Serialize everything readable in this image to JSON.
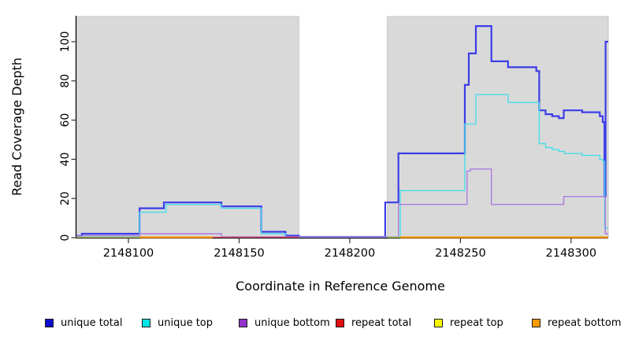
{
  "figure": {
    "xlabel": "Coordinate in Reference Genome",
    "ylabel": "Read Coverage Depth"
  },
  "legend": {
    "items": [
      {
        "label": "unique total",
        "color": "#0d0dcf"
      },
      {
        "label": "unique top",
        "color": "#00e6e6"
      },
      {
        "label": "unique bottom",
        "color": "#9232c8"
      },
      {
        "label": "repeat total",
        "color": "#e01010"
      },
      {
        "label": "repeat top",
        "color": "#f8f800"
      },
      {
        "label": "repeat bottom",
        "color": "#ff9a00"
      }
    ]
  },
  "chart_data": {
    "type": "line",
    "style": "step-after",
    "title": "",
    "xlabel": "Coordinate in Reference Genome",
    "ylabel": "Read Coverage Depth",
    "xlim": [
      2148076.5,
      2148316.8
    ],
    "ylim": [
      0,
      113
    ],
    "x_ticks": [
      2148100,
      2148150,
      2148200,
      2148250,
      2148300
    ],
    "x_tick_labels": [
      "2148100",
      "2148150",
      "2148200",
      "2148250",
      "2148300"
    ],
    "y_ticks": [
      0,
      20,
      40,
      60,
      80,
      100
    ],
    "y_tick_labels": [
      "0",
      "20",
      "40",
      "60",
      "80",
      "100"
    ],
    "grid": false,
    "legend_position": "bottom",
    "plot_background_color": "#d9d9d9",
    "masked_region": [
      2148177,
      2148217
    ],
    "series": [
      {
        "name": "unique total",
        "color": "#3c3ce8",
        "width": 2.2,
        "points": [
          [
            2148076.5,
            1
          ],
          [
            2148079,
            2
          ],
          [
            2148105,
            15
          ],
          [
            2148116,
            18
          ],
          [
            2148142,
            16
          ],
          [
            2148160,
            3
          ],
          [
            2148171,
            1
          ],
          [
            2148177,
            0.4
          ],
          [
            2148216,
            18
          ],
          [
            2148222,
            43
          ],
          [
            2148252,
            78
          ],
          [
            2148253.8,
            94
          ],
          [
            2148257,
            108
          ],
          [
            2148264,
            90
          ],
          [
            2148271.5,
            87
          ],
          [
            2148284.3,
            85
          ],
          [
            2148285.6,
            65
          ],
          [
            2148288.5,
            63
          ],
          [
            2148291.5,
            62
          ],
          [
            2148294.5,
            61
          ],
          [
            2148296.7,
            65
          ],
          [
            2148305,
            64
          ],
          [
            2148313,
            62
          ],
          [
            2148314.3,
            59
          ],
          [
            2148315.1,
            21
          ],
          [
            2148315.6,
            100
          ]
        ]
      },
      {
        "name": "unique top",
        "color": "#48dde8",
        "width": 1.4,
        "points": [
          [
            2148076.5,
            0.3
          ],
          [
            2148105,
            13
          ],
          [
            2148117,
            17
          ],
          [
            2148142,
            15
          ],
          [
            2148160,
            2
          ],
          [
            2148171,
            0.3
          ],
          [
            2148222.8,
            24
          ],
          [
            2148252,
            58
          ],
          [
            2148257,
            73
          ],
          [
            2148271.5,
            69
          ],
          [
            2148285.6,
            48
          ],
          [
            2148288.5,
            46
          ],
          [
            2148291.5,
            45
          ],
          [
            2148294.5,
            44
          ],
          [
            2148297,
            43
          ],
          [
            2148305,
            42
          ],
          [
            2148313,
            40
          ],
          [
            2148314.3,
            39
          ],
          [
            2148315.2,
            5
          ]
        ]
      },
      {
        "name": "unique bottom",
        "color": "#ab7ae0",
        "width": 1.4,
        "points": [
          [
            2148076.5,
            1
          ],
          [
            2148105,
            2
          ],
          [
            2148142,
            0.4
          ],
          [
            2148222,
            17
          ],
          [
            2148253,
            34
          ],
          [
            2148254.5,
            35
          ],
          [
            2148264,
            17
          ],
          [
            2148296.7,
            21
          ],
          [
            2148315.5,
            2
          ]
        ]
      },
      {
        "name": "repeat total",
        "color": "#cf4a70",
        "width": 1.4,
        "value": 0,
        "segments": [
          [
            2148138,
            2148177
          ]
        ]
      },
      {
        "name": "repeat top",
        "color": "#a6cf5a",
        "width": 1.6,
        "value": 0,
        "segments": [
          [
            2148076.5,
            2148105
          ],
          [
            2148217,
            2148222.8
          ]
        ]
      },
      {
        "name": "repeat bottom",
        "color": "#ff9a00",
        "width": 2.2,
        "value": 0,
        "segments": [
          [
            2148105,
            2148138
          ],
          [
            2148222.8,
            2148316.8
          ]
        ]
      }
    ]
  }
}
